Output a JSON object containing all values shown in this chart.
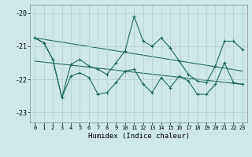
{
  "xlabel": "Humidex (Indice chaleur)",
  "bg_color": "#cde8e8",
  "grid_color": "#b0cccc",
  "line_color": "#1e6b5e",
  "xlim": [
    -0.5,
    23.5
  ],
  "ylim": [
    -23.3,
    -19.75
  ],
  "yticks": [
    -23,
    -22,
    -21,
    -20
  ],
  "xticks": [
    0,
    1,
    2,
    3,
    4,
    5,
    6,
    7,
    8,
    9,
    10,
    11,
    12,
    13,
    14,
    15,
    16,
    17,
    18,
    19,
    20,
    21,
    22,
    23
  ],
  "line1_x": [
    0,
    1,
    2,
    3,
    4,
    5,
    6,
    7,
    8,
    9,
    10,
    11,
    12,
    13,
    14,
    15,
    16,
    17,
    18,
    19,
    20,
    21,
    22,
    23
  ],
  "line1_y": [
    -20.75,
    -20.9,
    -21.4,
    -22.55,
    -21.55,
    -21.4,
    -21.6,
    -21.7,
    -21.85,
    -21.5,
    -21.15,
    -20.1,
    -20.85,
    -21.0,
    -20.75,
    -21.05,
    -21.45,
    -21.85,
    -22.05,
    -22.1,
    -21.6,
    -20.85,
    -20.85,
    -21.1
  ],
  "line2_x": [
    0,
    1,
    2,
    3,
    4,
    5,
    6,
    7,
    8,
    9,
    10,
    11,
    12,
    13,
    14,
    15,
    16,
    17,
    18,
    19,
    20,
    21,
    22,
    23
  ],
  "line2_y": [
    -20.75,
    -20.9,
    -21.4,
    -22.55,
    -21.9,
    -21.8,
    -21.95,
    -22.45,
    -22.4,
    -22.1,
    -21.75,
    -21.7,
    -22.15,
    -22.4,
    -21.95,
    -22.25,
    -21.9,
    -22.05,
    -22.45,
    -22.45,
    -22.15,
    -21.5,
    -22.1,
    -22.15
  ],
  "line3_x": [
    0,
    23
  ],
  "line3_y": [
    -20.75,
    -21.75
  ],
  "line4_x": [
    0,
    23
  ],
  "line4_y": [
    -21.45,
    -22.15
  ]
}
